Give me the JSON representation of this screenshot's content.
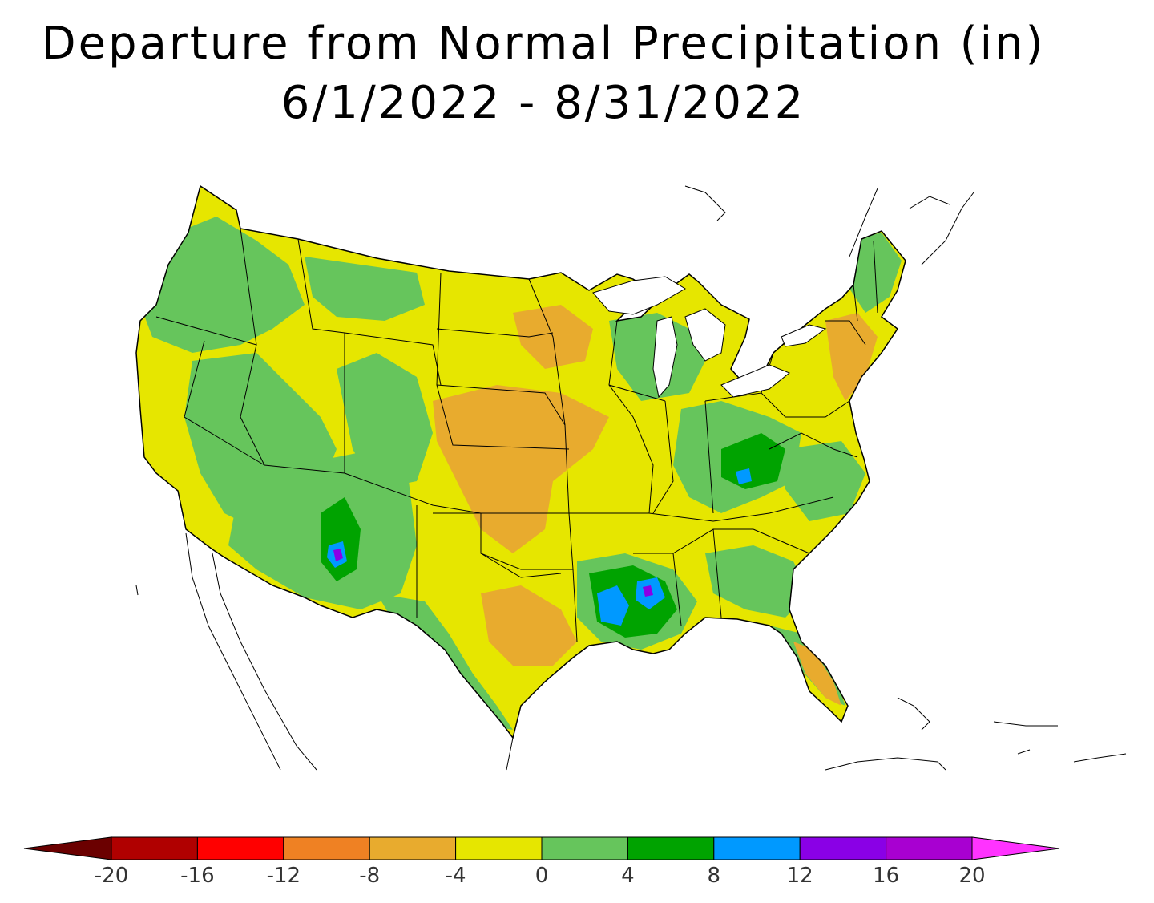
{
  "title": {
    "line1": "Departure from Normal Precipitation (in)",
    "line2": "6/1/2022 - 8/31/2022"
  },
  "legend": {
    "min": -20,
    "max": 20,
    "step": 4,
    "extend": "both",
    "tick_labels": [
      "-20",
      "-16",
      "-12",
      "-8",
      "-4",
      "0",
      "4",
      "8",
      "12",
      "16",
      "20"
    ],
    "colors": {
      "below_-20": "#6b0000",
      "-20_-16": "#b00000",
      "-16_-12": "#ff0000",
      "-12_-8": "#ef8123",
      "-8_-4": "#e8ab2e",
      "-4_0": "#e6e600",
      "0_4": "#66c55c",
      "4_8": "#00a300",
      "8_12": "#0099ff",
      "12_16": "#8a00e6",
      "16_20": "#a800d1",
      "above_20": "#ff33ff"
    }
  },
  "map": {
    "region": "Contiguous United States",
    "background_color": "#ffffff",
    "outline_color": "#000000"
  }
}
